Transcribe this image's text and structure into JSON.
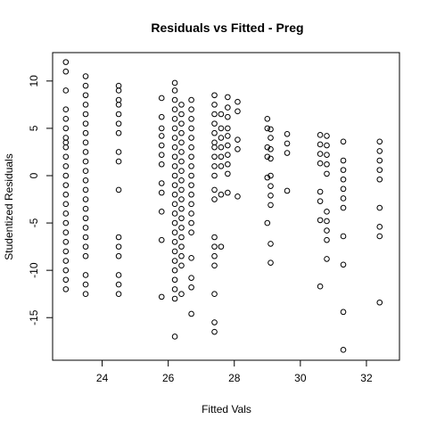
{
  "chart_data": {
    "type": "scatter",
    "title": "Residuals vs Fitted - Preg",
    "xlabel": "Fitted Vals",
    "ylabel": "Studentized Residuals",
    "xlim": [
      22.5,
      33.0
    ],
    "ylim": [
      -19.5,
      13.0
    ],
    "xticks": [
      24,
      26,
      28,
      30,
      32
    ],
    "yticks": [
      -15,
      -10,
      -5,
      0,
      5,
      10
    ],
    "grid": false,
    "columns": [
      {
        "x": 22.9,
        "y": [
          12.0,
          11.0,
          9.0,
          7.0,
          6.0,
          5.0,
          4.0,
          3.5,
          3.0,
          2.0,
          1.0,
          0.0,
          -1.0,
          -2.0,
          -3.0,
          -4.0,
          -5.0,
          -6.0,
          -7.0,
          -8.0,
          -9.0,
          -10.0,
          -11.0,
          -12.0
        ]
      },
      {
        "x": 23.5,
        "y": [
          10.5,
          9.5,
          8.5,
          7.5,
          6.5,
          5.5,
          4.5,
          3.5,
          2.5,
          1.5,
          0.5,
          -0.5,
          -1.5,
          -2.5,
          -3.5,
          -4.5,
          -5.5,
          -6.5,
          -7.5,
          -8.5,
          -10.5,
          -11.5,
          -12.5
        ]
      },
      {
        "x": 24.5,
        "y": [
          9.5,
          9.0,
          8.0,
          7.5,
          6.5,
          5.5,
          4.5,
          2.5,
          1.5,
          -1.5,
          -6.5,
          -7.5,
          -8.5,
          -10.5,
          -11.5,
          -12.5
        ]
      },
      {
        "x": 25.8,
        "y": [
          8.2,
          6.2,
          5.0,
          4.2,
          3.2,
          2.2,
          1.2,
          -0.8,
          -1.8,
          -3.8,
          -6.8,
          -12.8
        ]
      },
      {
        "x": 26.2,
        "y": [
          9.8,
          9.0,
          8.0,
          7.0,
          6.0,
          5.0,
          4.0,
          3.0,
          2.0,
          1.0,
          0.0,
          -1.0,
          -2.0,
          -3.0,
          -4.0,
          -5.0,
          -6.0,
          -7.0,
          -8.0,
          -9.0,
          -10.0,
          -11.0,
          -12.0,
          -13.0,
          -17.0
        ]
      },
      {
        "x": 26.4,
        "y": [
          7.5,
          6.5,
          5.5,
          4.5,
          3.5,
          2.5,
          1.5,
          0.5,
          -0.5,
          -1.5,
          -2.5,
          -3.5,
          -4.5,
          -5.5,
          -6.5,
          -7.5,
          -8.5,
          -9.5,
          -12.5
        ]
      },
      {
        "x": 26.7,
        "y": [
          8.0,
          7.0,
          6.0,
          5.0,
          4.0,
          3.0,
          2.0,
          1.0,
          0.0,
          -1.0,
          -2.0,
          -3.0,
          -4.0,
          -5.0,
          -6.0,
          -8.7,
          -10.8,
          -11.8,
          -14.6
        ]
      },
      {
        "x": 27.4,
        "y": [
          8.5,
          7.5,
          6.5,
          5.5,
          4.5,
          3.5,
          3.0,
          2.0,
          1.0,
          0.0,
          -1.5,
          -2.5,
          -6.5,
          -7.5,
          -8.5,
          -9.5,
          -12.5,
          -15.5,
          -16.5
        ]
      },
      {
        "x": 27.6,
        "y": [
          6.5,
          5.0,
          4.0,
          3.0,
          2.0,
          1.0,
          -2.0,
          -7.5
        ]
      },
      {
        "x": 27.8,
        "y": [
          8.3,
          7.2,
          6.2,
          5.0,
          4.2,
          3.2,
          2.2,
          1.2,
          0.2,
          -1.8
        ]
      },
      {
        "x": 28.1,
        "y": [
          7.8,
          6.8,
          3.8,
          2.8,
          -2.2
        ]
      },
      {
        "x": 29.0,
        "y": [
          6.0,
          5.0,
          3.0,
          2.0,
          -0.2,
          -5.0
        ]
      },
      {
        "x": 29.1,
        "y": [
          4.9,
          4.0,
          2.8,
          1.8,
          0.0,
          -1.1,
          -2.1,
          -3.1,
          -7.2,
          -9.2
        ]
      },
      {
        "x": 29.6,
        "y": [
          4.4,
          3.4,
          2.4,
          -1.6
        ]
      },
      {
        "x": 30.6,
        "y": [
          4.3,
          3.3,
          2.3,
          1.3,
          -1.7,
          -2.7,
          -4.7,
          -11.7
        ]
      },
      {
        "x": 30.8,
        "y": [
          4.2,
          3.2,
          2.2,
          1.2,
          0.2,
          -3.8,
          -4.8,
          -5.8,
          -6.8,
          -8.8
        ]
      },
      {
        "x": 31.3,
        "y": [
          3.6,
          1.6,
          0.6,
          -0.4,
          -1.4,
          -2.4,
          -3.4,
          -6.4,
          -9.4,
          -14.4,
          -18.4
        ]
      },
      {
        "x": 32.4,
        "y": [
          3.6,
          2.6,
          1.6,
          0.6,
          -0.4,
          -3.4,
          -5.4,
          -6.4,
          -13.4
        ]
      }
    ]
  }
}
